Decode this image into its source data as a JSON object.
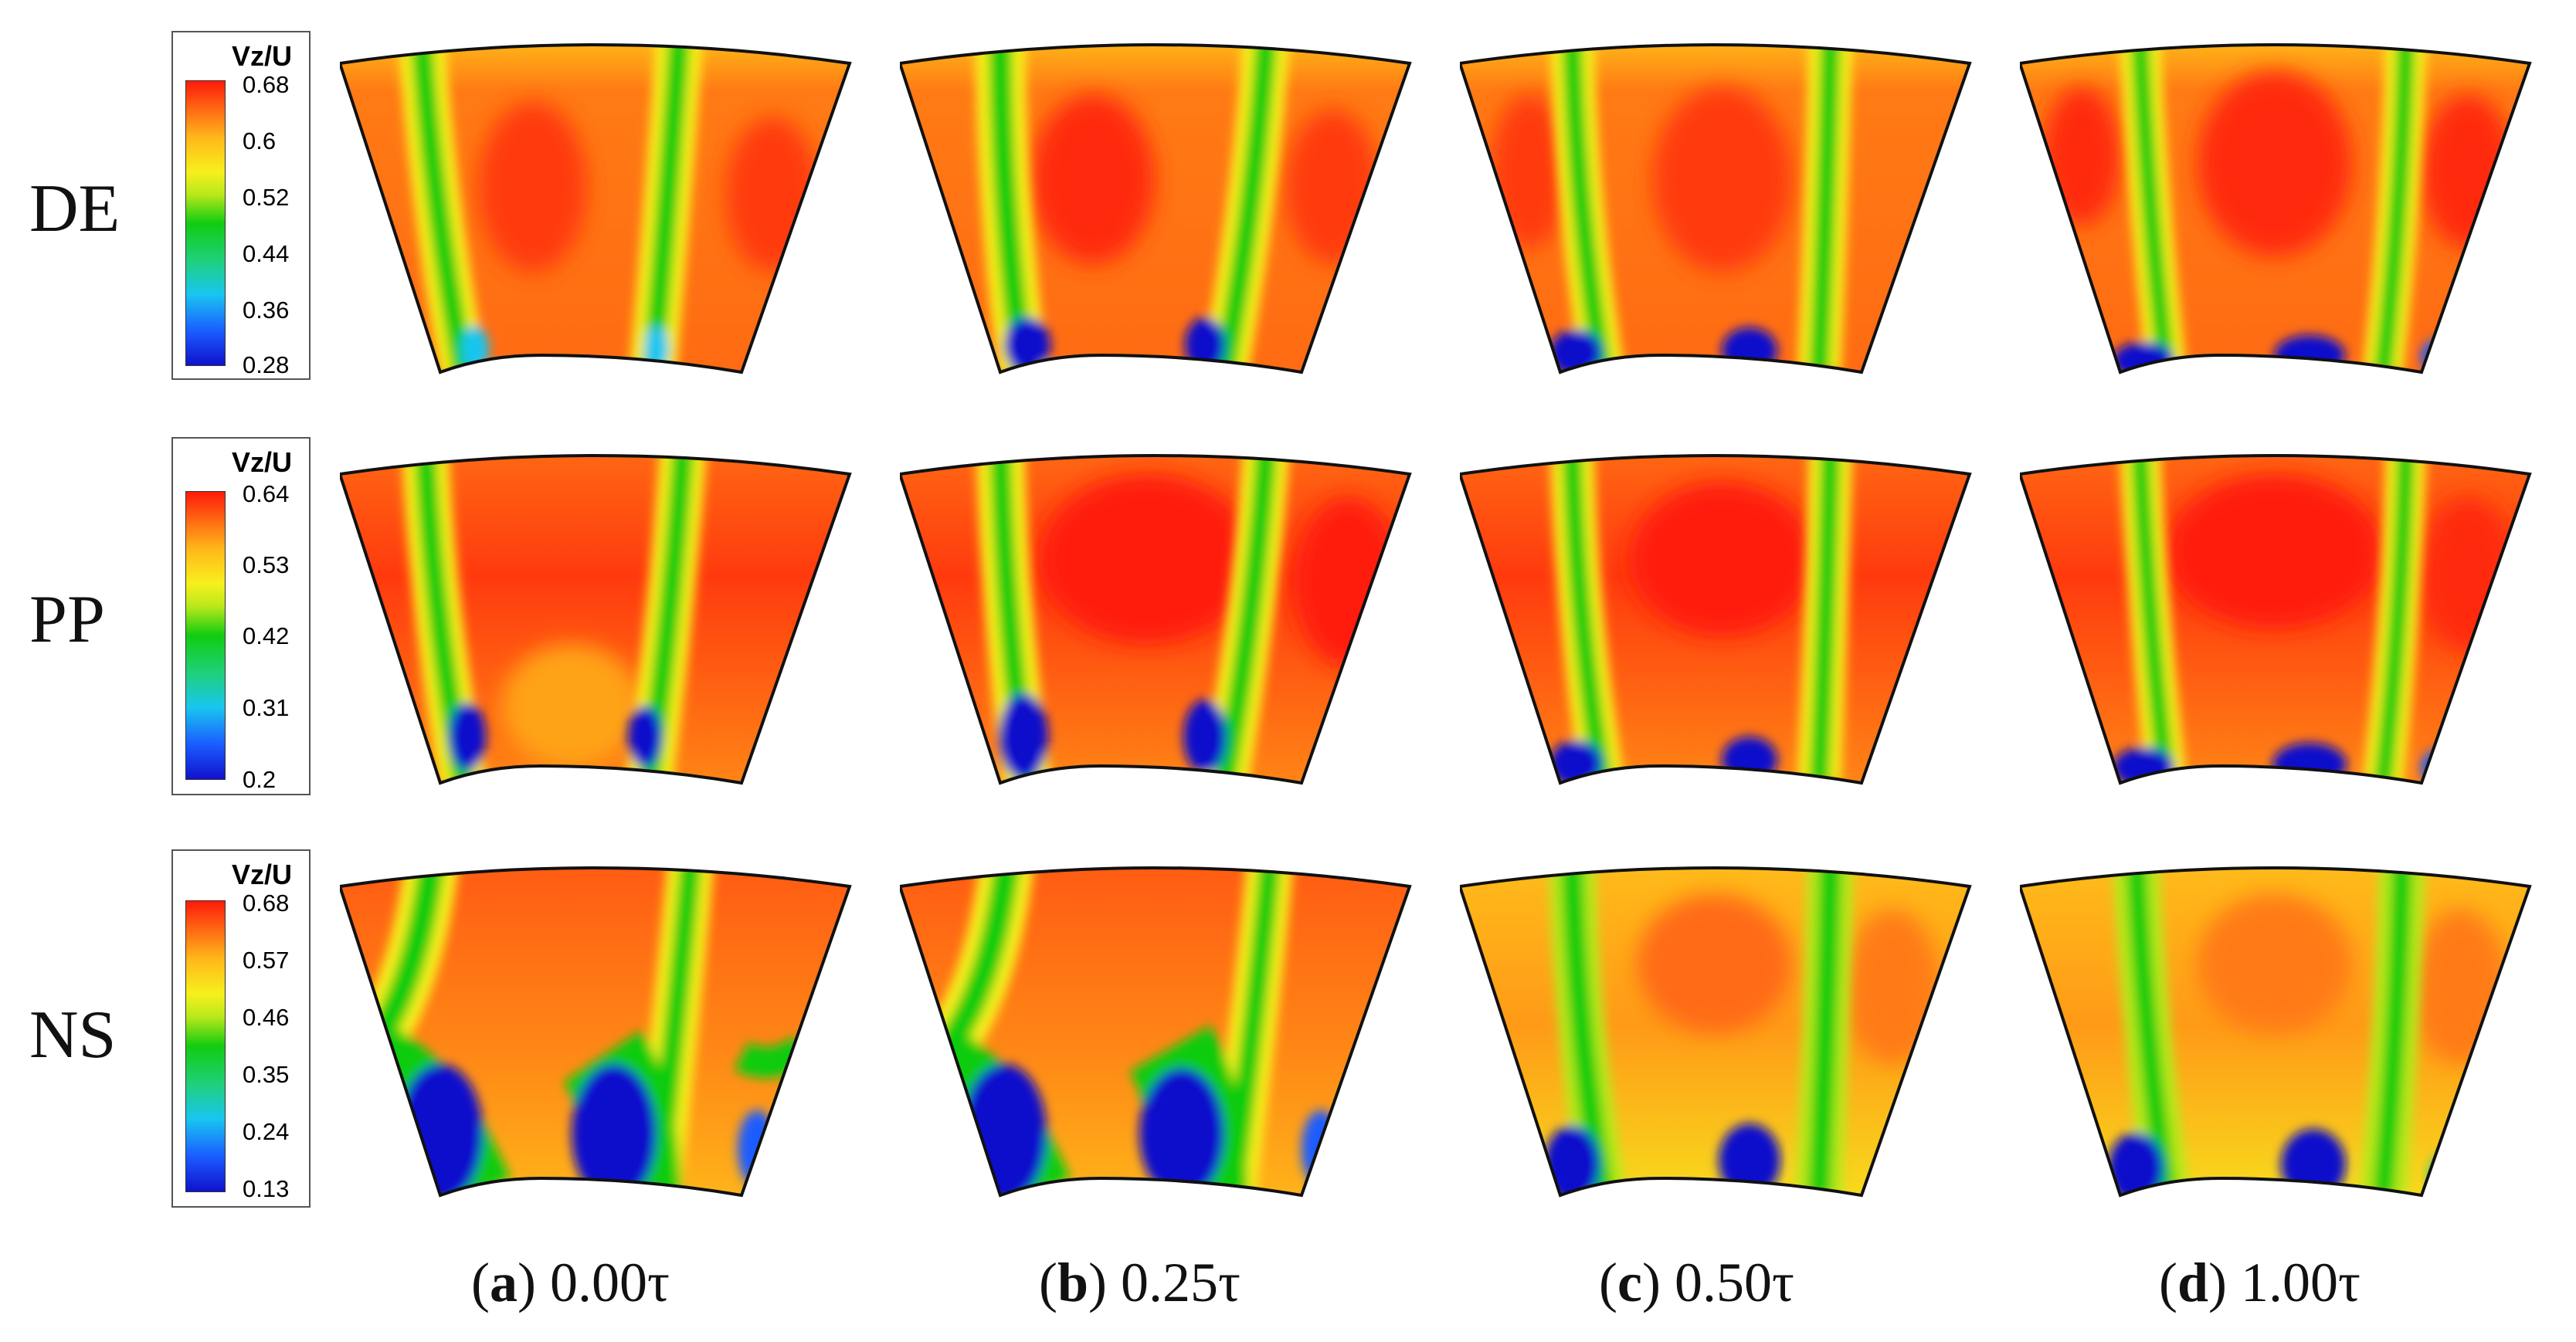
{
  "rows": [
    {
      "label": "DE",
      "legend": {
        "title": "Vz/U",
        "ticks": [
          "0.68",
          "0.6",
          "0.52",
          "0.44",
          "0.36",
          "0.28"
        ]
      }
    },
    {
      "label": "PP",
      "legend": {
        "title": "Vz/U",
        "ticks": [
          "0.64",
          "0.53",
          "0.42",
          "0.31",
          "0.2"
        ]
      }
    },
    {
      "label": "NS",
      "legend": {
        "title": "Vz/U",
        "ticks": [
          "0.68",
          "0.57",
          "0.46",
          "0.35",
          "0.24",
          "0.13"
        ]
      }
    }
  ],
  "captions": [
    {
      "letter": "a",
      "time": "0.00τ"
    },
    {
      "letter": "b",
      "time": "0.25τ"
    },
    {
      "letter": "c",
      "time": "0.50τ"
    },
    {
      "letter": "d",
      "time": "1.00τ"
    }
  ],
  "colors": {
    "high": "#ff1a0a",
    "mid_high": "#ff6a13",
    "mid": "#f7f01d",
    "mid_low": "#11cc11",
    "low": "#1111cc"
  }
}
